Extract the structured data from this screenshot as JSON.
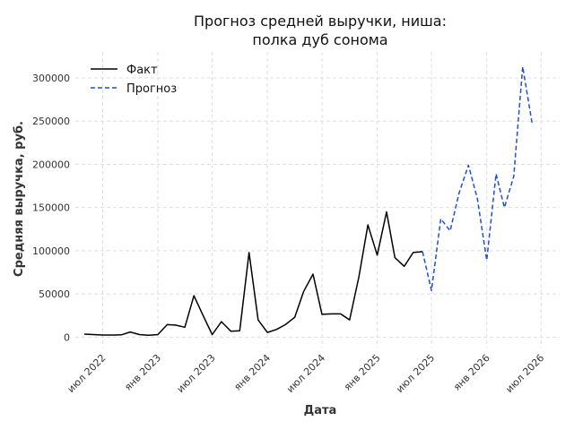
{
  "chart_data": {
    "type": "line",
    "title_lines": [
      "Прогноз средней выручки, ниша:",
      "полка дуб сонома"
    ],
    "xlabel": "Дата",
    "ylabel": "Средняя выручка, руб.",
    "ylim": [
      -12000,
      330000
    ],
    "xlim": [
      "2022-04-01",
      "2026-09-01"
    ],
    "y_ticks": [
      0,
      50000,
      100000,
      150000,
      200000,
      250000,
      300000
    ],
    "y_tick_labels": [
      "0",
      "50000",
      "100000",
      "150000",
      "200000",
      "250000",
      "300000"
    ],
    "x_ticks": [
      "2022-07-01",
      "2023-01-01",
      "2023-07-01",
      "2024-01-01",
      "2024-07-01",
      "2025-01-01",
      "2025-07-01",
      "2026-01-01",
      "2026-07-01"
    ],
    "x_tick_labels": [
      "июл 2022",
      "янв 2023",
      "июл 2023",
      "янв 2024",
      "июл 2024",
      "янв 2025",
      "июл 2025",
      "янв 2026",
      "июл 2026"
    ],
    "grid": true,
    "legend_position": "top-left",
    "series": [
      {
        "name": "Факт",
        "color": "#000000",
        "dash": "solid",
        "points": [
          [
            "2022-05-01",
            3500
          ],
          [
            "2022-06-01",
            3000
          ],
          [
            "2022-07-01",
            2500
          ],
          [
            "2022-08-01",
            2500
          ],
          [
            "2022-09-01",
            2700
          ],
          [
            "2022-10-01",
            6000
          ],
          [
            "2022-11-01",
            3000
          ],
          [
            "2022-12-01",
            2200
          ],
          [
            "2023-01-01",
            3000
          ],
          [
            "2023-02-01",
            14500
          ],
          [
            "2023-03-01",
            14000
          ],
          [
            "2023-04-01",
            11500
          ],
          [
            "2023-05-01",
            48000
          ],
          [
            "2023-06-01",
            25000
          ],
          [
            "2023-07-01",
            3000
          ],
          [
            "2023-08-01",
            18000
          ],
          [
            "2023-09-01",
            7000
          ],
          [
            "2023-10-01",
            7500
          ],
          [
            "2023-11-01",
            98000
          ],
          [
            "2023-12-01",
            20000
          ],
          [
            "2024-01-01",
            5500
          ],
          [
            "2024-02-01",
            9000
          ],
          [
            "2024-03-01",
            14500
          ],
          [
            "2024-04-01",
            23000
          ],
          [
            "2024-05-01",
            53000
          ],
          [
            "2024-06-01",
            73000
          ],
          [
            "2024-07-01",
            26500
          ],
          [
            "2024-08-01",
            27000
          ],
          [
            "2024-09-01",
            27000
          ],
          [
            "2024-10-01",
            20000
          ],
          [
            "2024-11-01",
            70000
          ],
          [
            "2024-12-01",
            130000
          ],
          [
            "2025-01-01",
            95000
          ],
          [
            "2025-02-01",
            145000
          ],
          [
            "2025-03-01",
            92000
          ],
          [
            "2025-04-01",
            82000
          ],
          [
            "2025-05-01",
            98000
          ],
          [
            "2025-06-01",
            99000
          ]
        ]
      },
      {
        "name": "Прогноз",
        "color": "#1f4fd1",
        "dash": "dashed",
        "points": [
          [
            "2025-06-01",
            99000
          ],
          [
            "2025-07-01",
            54000
          ],
          [
            "2025-08-01",
            137000
          ],
          [
            "2025-09-01",
            123000
          ],
          [
            "2025-10-01",
            167000
          ],
          [
            "2025-11-01",
            199000
          ],
          [
            "2025-12-01",
            160000
          ],
          [
            "2026-01-01",
            89000
          ],
          [
            "2026-02-01",
            189000
          ],
          [
            "2026-03-01",
            150000
          ],
          [
            "2026-04-01",
            186000
          ],
          [
            "2026-05-01",
            313000
          ],
          [
            "2026-06-01",
            248000
          ]
        ]
      }
    ]
  }
}
